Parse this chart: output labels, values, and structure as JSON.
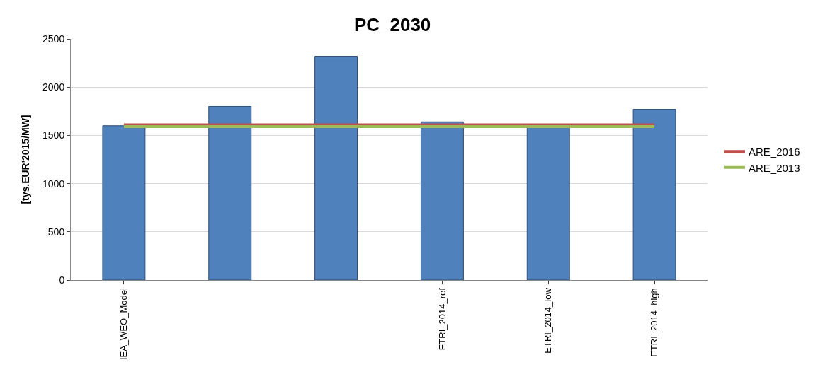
{
  "chart_data": {
    "type": "bar",
    "title": "PC_2030",
    "ylabel": "[tys.EUR'2015/MW]",
    "categories": [
      "IEA_WEO_Model",
      null,
      null,
      "ETRI_2014_ref",
      "ETRI_2014_low",
      "ETRI_2014_high"
    ],
    "series": [
      {
        "color": "#4f81bd",
        "values": [
          1600,
          1800,
          2320,
          1640,
          1600,
          1770
        ]
      },
      {
        "type": "line",
        "name": "ARE_2016",
        "color": "#c0504d",
        "values": [
          1610,
          1610,
          1610,
          1610,
          1610,
          1610
        ]
      },
      {
        "type": "line",
        "name": "ARE_2013",
        "color": "#9bbb59",
        "values": [
          1590,
          1590,
          1590,
          1590,
          1590,
          1590
        ]
      }
    ],
    "ylim": [
      0,
      2500
    ],
    "yticks": [
      0,
      500,
      1000,
      1500,
      2000,
      2500
    ],
    "grid": "y",
    "legend": "right",
    "marker": "none",
    "line_style": "solid"
  }
}
